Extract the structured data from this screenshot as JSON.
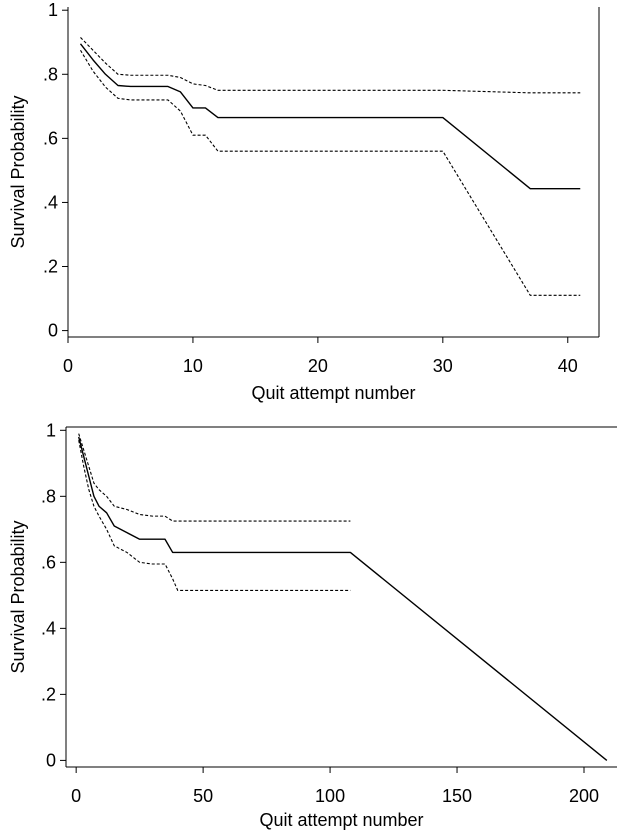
{
  "chart_data": [
    {
      "type": "line",
      "title": "",
      "xlabel": "Quit attempt number",
      "ylabel": "Survival Probability",
      "xlim": [
        0,
        42.5
      ],
      "ylim": [
        -0.02,
        1.01
      ],
      "x_ticks": [
        0,
        10,
        20,
        30,
        40
      ],
      "x_tick_labels": [
        "0",
        "10",
        "20",
        "30",
        "40"
      ],
      "y_ticks": [
        0,
        0.2,
        0.4,
        0.6,
        0.8,
        1
      ],
      "y_tick_labels": [
        "0",
        ".2",
        ".4",
        ".6",
        ".8",
        "1"
      ],
      "grid": false,
      "series": [
        {
          "style": "solid",
          "x": [
            1,
            2,
            3,
            4,
            5,
            8,
            9,
            10,
            11,
            12,
            30,
            37,
            41
          ],
          "y": [
            0.895,
            0.845,
            0.8,
            0.765,
            0.762,
            0.762,
            0.745,
            0.695,
            0.695,
            0.665,
            0.665,
            0.443,
            0.443
          ]
        },
        {
          "style": "dashed",
          "x": [
            1,
            2,
            3,
            4,
            5,
            8,
            9,
            10,
            11,
            12,
            30,
            37,
            41
          ],
          "y": [
            0.915,
            0.875,
            0.835,
            0.8,
            0.797,
            0.797,
            0.79,
            0.77,
            0.765,
            0.75,
            0.75,
            0.742,
            0.742
          ]
        },
        {
          "style": "dashed",
          "x": [
            1,
            2,
            3,
            4,
            5,
            8,
            9,
            10,
            11,
            12,
            30,
            37,
            41
          ],
          "y": [
            0.875,
            0.81,
            0.76,
            0.725,
            0.72,
            0.72,
            0.685,
            0.61,
            0.61,
            0.56,
            0.56,
            0.11,
            0.11
          ]
        }
      ]
    },
    {
      "type": "line",
      "title": "",
      "xlabel": "Quit attempt number",
      "ylabel": "Survival Probability",
      "xlim": [
        -4,
        213
      ],
      "ylim": [
        -0.02,
        1.01
      ],
      "x_ticks": [
        0,
        50,
        100,
        150,
        200
      ],
      "x_tick_labels": [
        "0",
        "50",
        "100",
        "150",
        "200"
      ],
      "y_ticks": [
        0,
        0.2,
        0.4,
        0.6,
        0.8,
        1
      ],
      "y_tick_labels": [
        "0",
        ".2",
        ".4",
        ".6",
        ".8",
        "1"
      ],
      "grid": false,
      "series": [
        {
          "style": "solid",
          "x": [
            1,
            3,
            5,
            7,
            9,
            12,
            15,
            20,
            25,
            30,
            35,
            38,
            108,
            209
          ],
          "y": [
            0.98,
            0.92,
            0.86,
            0.8,
            0.77,
            0.75,
            0.71,
            0.69,
            0.67,
            0.67,
            0.67,
            0.63,
            0.63,
            0
          ]
        },
        {
          "style": "dashed",
          "x": [
            1,
            3,
            5,
            7,
            9,
            12,
            15,
            20,
            25,
            30,
            35,
            38,
            108
          ],
          "y": [
            0.99,
            0.94,
            0.89,
            0.84,
            0.82,
            0.8,
            0.77,
            0.76,
            0.745,
            0.74,
            0.74,
            0.725,
            0.725
          ]
        },
        {
          "style": "dashed",
          "x": [
            1,
            3,
            5,
            7,
            9,
            12,
            15,
            20,
            25,
            30,
            35,
            38,
            40,
            108
          ],
          "y": [
            0.97,
            0.89,
            0.82,
            0.77,
            0.74,
            0.7,
            0.65,
            0.63,
            0.6,
            0.595,
            0.595,
            0.55,
            0.515,
            0.515
          ]
        }
      ]
    }
  ]
}
